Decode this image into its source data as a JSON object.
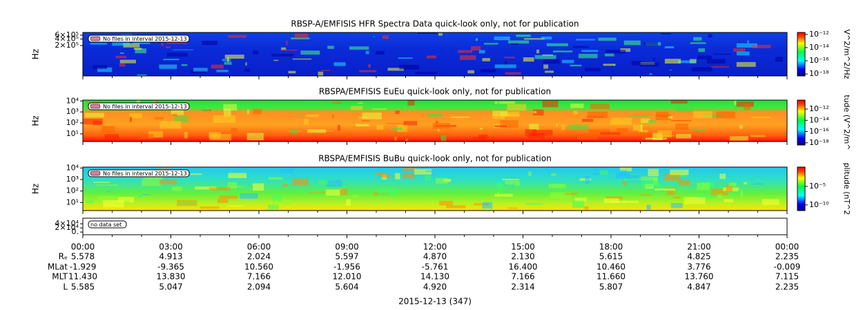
{
  "panels": [
    {
      "title": "RBSP-A/EMFISIS  HFR Spectra Data quick-look only, not for publication",
      "ylabel": "Hz",
      "scale": "log",
      "ylim": [
        8000,
        800000
      ],
      "yticks": [
        {
          "value": 200000,
          "label": "2×10⁵"
        },
        {
          "value": 400000,
          "label": "4×10⁵"
        },
        {
          "value": 600000,
          "label": "6×10⁵"
        }
      ],
      "annotation": "No files in interval 2015-12-13",
      "colorbar": {
        "label": "V^2/m^2/Hz",
        "zlim": [
          5e-19,
          2e-12
        ],
        "ticks": [
          {
            "value": 1e-12,
            "label": "10⁻¹²"
          },
          {
            "value": 1e-14,
            "label": "10⁻¹⁴"
          },
          {
            "value": 1e-16,
            "label": "10⁻¹⁶"
          },
          {
            "value": 1e-18,
            "label": "10⁻¹⁸"
          }
        ]
      }
    },
    {
      "title": "RBSPA/EMFISIS  EuEu quick-look only, not for publication",
      "ylabel": "Hz",
      "scale": "log",
      "ylim": [
        2,
        12000
      ],
      "yticks": [
        {
          "value": 10,
          "label": "10¹"
        },
        {
          "value": 100,
          "label": "10²"
        },
        {
          "value": 1000,
          "label": "10³"
        },
        {
          "value": 10000,
          "label": "10⁴"
        }
      ],
      "annotation": "No files in interval 2015-12-13",
      "colorbar": {
        "label": "tude (V^2/m^",
        "zlim": [
          4e-19,
          4e-11
        ],
        "ticks": [
          {
            "value": 1e-12,
            "label": "10⁻¹²"
          },
          {
            "value": 1e-14,
            "label": "10⁻¹⁴"
          },
          {
            "value": 1e-16,
            "label": "10⁻¹⁶"
          },
          {
            "value": 1e-18,
            "label": "10⁻¹⁸"
          }
        ]
      }
    },
    {
      "title": "RBSPA/EMFISIS  BuBu quick-look only, not for publication",
      "ylabel": "Hz",
      "scale": "log",
      "ylim": [
        2,
        12000
      ],
      "yticks": [
        {
          "value": 10,
          "label": "10¹"
        },
        {
          "value": 100,
          "label": "10²"
        },
        {
          "value": 1000,
          "label": "10³"
        },
        {
          "value": 10000,
          "label": "10⁴"
        }
      ],
      "annotation": "No files in interval 2015-12-13",
      "colorbar": {
        "label": "plitude (nT^2",
        "zlim": [
          3e-12,
          1.6
        ],
        "ticks": [
          {
            "value": 1e-05,
            "label": "10⁻⁵"
          },
          {
            "value": 1e-10,
            "label": "10⁻¹⁰"
          }
        ]
      }
    },
    {
      "scale": "linear",
      "ylim": [
        -13000,
        67000
      ],
      "yticks": [
        {
          "value": 0,
          "label": "0."
        },
        {
          "value": 20000,
          "label": "2×10⁴"
        },
        {
          "value": 40000,
          "label": "4×10⁴"
        }
      ],
      "annotation": "no data set"
    }
  ],
  "x_axis": {
    "ticks": [
      "00:00",
      "03:00",
      "06:00",
      "09:00",
      "12:00",
      "15:00",
      "18:00",
      "21:00",
      "00:00"
    ]
  },
  "ephemeris": {
    "rows": [
      {
        "label": "Rₑ",
        "values": [
          "5.578",
          "4.913",
          "2.024",
          "5.597",
          "4.870",
          "2.130",
          "5.615",
          "4.825",
          "2.235"
        ]
      },
      {
        "label": "MLat",
        "values": [
          "-1.929",
          "-9.365",
          "10.560",
          "-1.956",
          "-5.761",
          "16.400",
          "10.460",
          "3.776",
          "-0.009"
        ]
      },
      {
        "label": "MLT",
        "values": [
          "11.430",
          "13.830",
          "7.166",
          "12.010",
          "14.130",
          "7.166",
          "11.660",
          "13.760",
          "7.115"
        ]
      },
      {
        "label": "L",
        "values": [
          "5.585",
          "5.047",
          "2.094",
          "5.604",
          "4.920",
          "2.314",
          "5.807",
          "4.847",
          "2.235"
        ]
      }
    ]
  },
  "date_label": "2015-12-13 (347)"
}
